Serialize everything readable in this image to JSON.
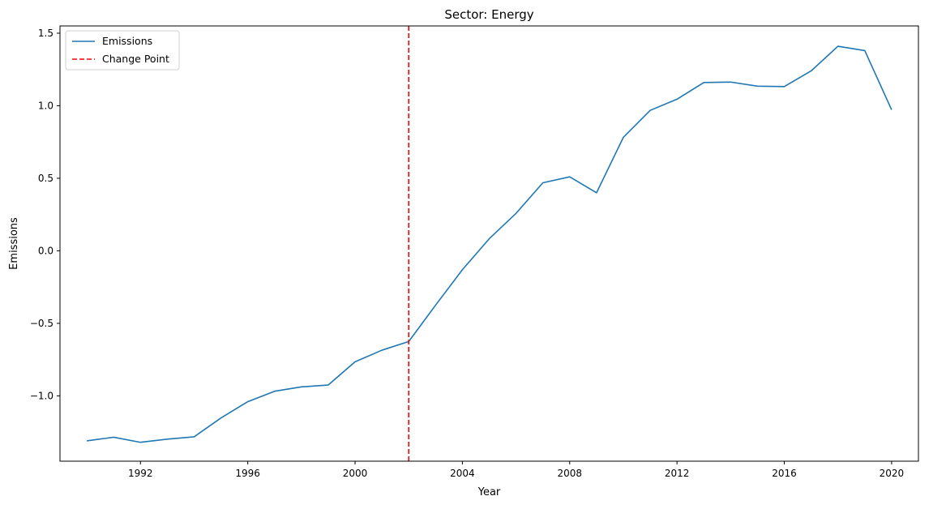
{
  "chart_data": {
    "type": "line",
    "title": "Sector: Energy",
    "xlabel": "Year",
    "ylabel": "Emissions",
    "xlim": [
      1989.0,
      2021.0
    ],
    "ylim": [
      -1.45,
      1.55
    ],
    "x_ticks": [
      1992,
      1996,
      2000,
      2004,
      2008,
      2012,
      2016,
      2020
    ],
    "y_ticks": [
      {
        "value": -1.0,
        "label": "−1.0"
      },
      {
        "value": -0.5,
        "label": "−0.5"
      },
      {
        "value": 0.0,
        "label": "0.0"
      },
      {
        "value": 0.5,
        "label": "0.5"
      },
      {
        "value": 1.0,
        "label": "1.0"
      },
      {
        "value": 1.5,
        "label": "1.5"
      }
    ],
    "grid": false,
    "legend_position": "upper-left",
    "series": [
      {
        "name": "Emissions",
        "color": "#1f77b4",
        "style": "solid",
        "x": [
          1990,
          1991,
          1992,
          1993,
          1994,
          1995,
          1996,
          1997,
          1998,
          1999,
          2000,
          2001,
          2002,
          2003,
          2004,
          2005,
          2006,
          2007,
          2008,
          2009,
          2010,
          2011,
          2012,
          2013,
          2014,
          2015,
          2016,
          2017,
          2018,
          2019,
          2020
        ],
        "y": [
          -1.31,
          -1.285,
          -1.32,
          -1.298,
          -1.282,
          -1.152,
          -1.04,
          -0.968,
          -0.938,
          -0.925,
          -0.765,
          -0.685,
          -0.625,
          -0.375,
          -0.13,
          0.083,
          0.258,
          0.469,
          0.51,
          0.4,
          0.782,
          0.968,
          1.045,
          1.16,
          1.163,
          1.135,
          1.132,
          1.24,
          1.41,
          1.38,
          0.972
        ]
      }
    ],
    "change_point": {
      "name": "Change Point",
      "x": 2002,
      "color": "#ff0000",
      "style": "dashed"
    }
  }
}
